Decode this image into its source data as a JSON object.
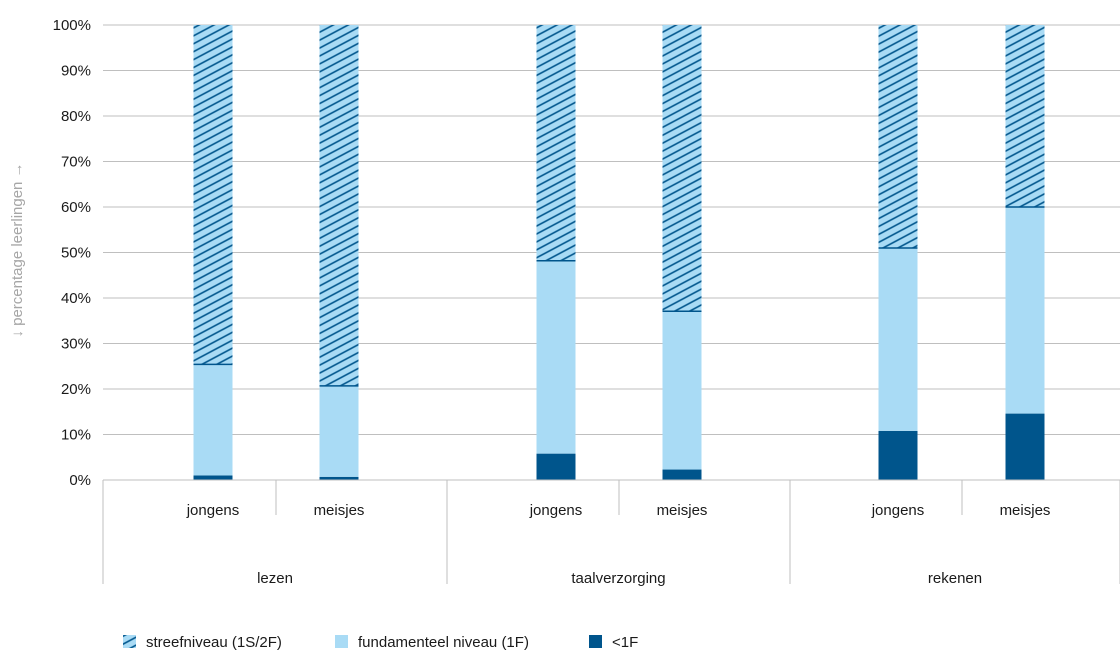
{
  "chart_data": {
    "type": "bar",
    "stacked": true,
    "percent": true,
    "groups": [
      "lezen",
      "taalverzorging",
      "rekenen"
    ],
    "categories": [
      "jongens",
      "meisjes",
      "jongens",
      "meisjes",
      "jongens",
      "meisjes"
    ],
    "category_group": [
      0,
      0,
      1,
      1,
      2,
      2
    ],
    "series": [
      {
        "name": "<1F",
        "color": "#00558c",
        "pattern": "solid",
        "values": [
          1,
          0.7,
          5.8,
          2.3,
          10.8,
          14.6
        ]
      },
      {
        "name": "fundamenteel niveau (1F)",
        "color": "#a9dbf5",
        "pattern": "solid",
        "values": [
          24.4,
          20,
          42.4,
          34.8,
          40.2,
          45.4
        ]
      },
      {
        "name": "streefniveau (1S/2F)",
        "color": "#a9dbf5",
        "pattern": "hatched",
        "hatch_color": "#00558c",
        "values": [
          74.6,
          79.3,
          51.8,
          62.9,
          49,
          40
        ]
      }
    ],
    "legend_order": [
      2,
      1,
      0
    ],
    "legend_position": "bottom-left",
    "ylabel": "↓ percentage leerlingen →",
    "ylim": [
      0,
      100
    ],
    "yticks": [
      "0%",
      "10%",
      "20%",
      "30%",
      "40%",
      "50%",
      "60%",
      "70%",
      "80%",
      "90%",
      "100%"
    ],
    "grid": true
  }
}
